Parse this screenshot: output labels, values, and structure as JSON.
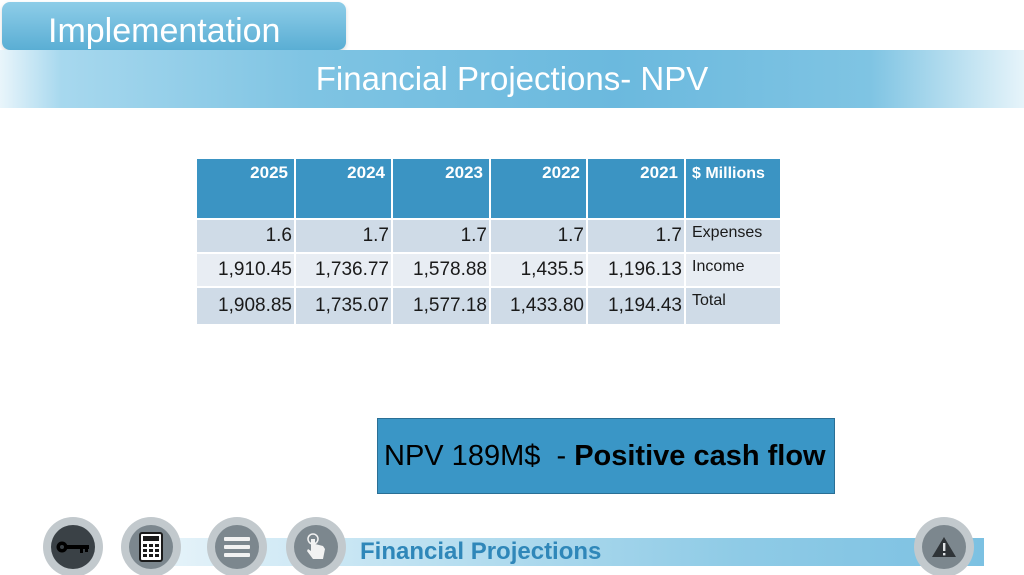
{
  "header": {
    "section_tab": "Implementation",
    "title": "Financial Projections- NPV"
  },
  "table": {
    "columns": [
      "2025",
      "2024",
      "2023",
      "2022",
      "2021",
      "$ Millions"
    ],
    "rows": [
      {
        "values": [
          "1.6",
          "1.7",
          "1.7",
          "1.7",
          "1.7"
        ],
        "label": "Expenses"
      },
      {
        "values": [
          "1,910.45",
          "1,736.77",
          "1,578.88",
          "1,435.5",
          "1,196.13"
        ],
        "label": "Income"
      },
      {
        "values": [
          "1,908.85",
          "1,735.07",
          "1,577.18",
          "1,433.80",
          "1,194.43"
        ],
        "label": "Total"
      }
    ]
  },
  "npv": {
    "prefix": "NPV 189M$  - ",
    "emphasis": "Positive cash flow"
  },
  "footer": {
    "section_label": "Financial Projections",
    "nav_icons": [
      "key-icon",
      "calculator-icon",
      "menu-icon",
      "touch-icon"
    ],
    "alert_icon": "warning-icon"
  },
  "colors": {
    "accent": "#3b94c3",
    "banner": "#6bb9de",
    "footer_text": "#2f87b9"
  }
}
